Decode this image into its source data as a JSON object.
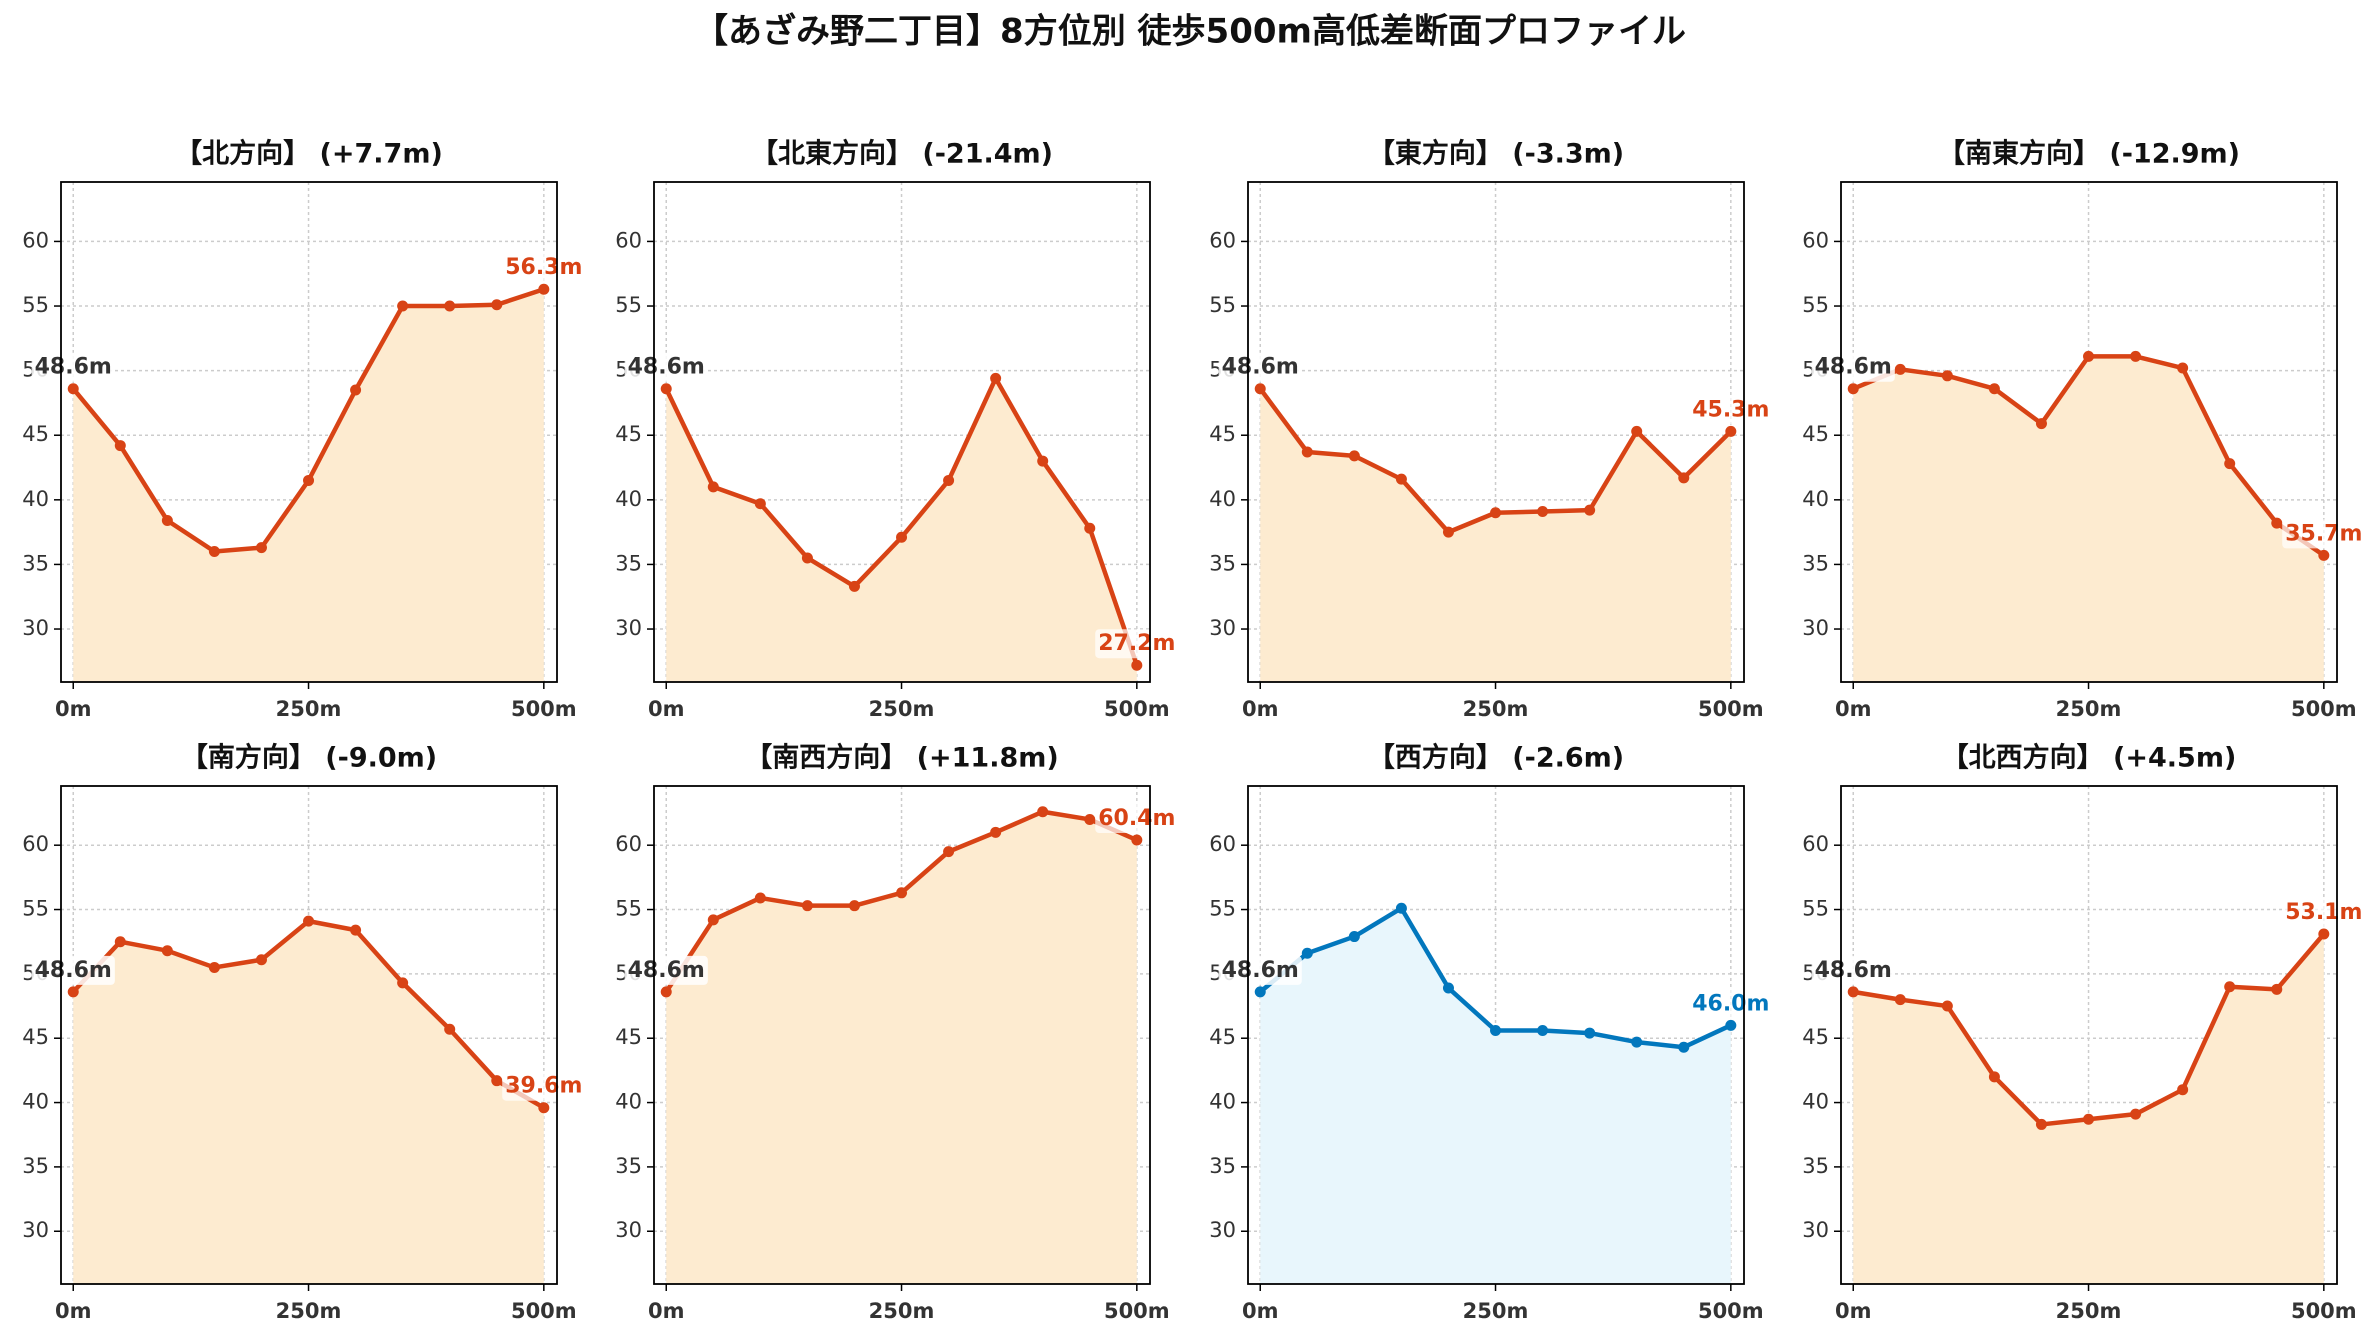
{
  "title": "【あざみ野二丁目】8方位別 徒歩500m高低差断面プロファイル",
  "chart_data": [
    {
      "type": "line",
      "title": "【北方向】 (+7.7m)",
      "x": [
        0,
        50,
        100,
        150,
        200,
        250,
        300,
        350,
        400,
        450,
        500
      ],
      "xlim": [
        -13,
        514
      ],
      "xticks": [
        {
          "value": 0,
          "label": "0m"
        },
        {
          "value": 250,
          "label": "250m"
        },
        {
          "value": 500,
          "label": "500m"
        }
      ],
      "ylim": [
        25.9,
        64.6
      ],
      "yticks": [
        30,
        35,
        40,
        45,
        50,
        55,
        60
      ],
      "grid": true,
      "series": [
        {
          "color": "#d84315",
          "fill": "#fdebd0",
          "values": [
            48.6,
            44.2,
            38.4,
            36.0,
            36.3,
            41.5,
            48.5,
            55.0,
            55.0,
            55.1,
            56.3
          ],
          "value_labels": [
            "48.6m",
            null,
            null,
            null,
            null,
            null,
            null,
            null,
            null,
            null,
            "56.3m"
          ]
        }
      ]
    },
    {
      "type": "line",
      "title": "【北東方向】 (-21.4m)",
      "x": [
        0,
        50,
        100,
        150,
        200,
        250,
        300,
        350,
        400,
        450,
        500
      ],
      "xlim": [
        -13,
        514
      ],
      "xticks": [
        {
          "value": 0,
          "label": "0m"
        },
        {
          "value": 250,
          "label": "250m"
        },
        {
          "value": 500,
          "label": "500m"
        }
      ],
      "ylim": [
        25.9,
        64.6
      ],
      "yticks": [
        30,
        35,
        40,
        45,
        50,
        55,
        60
      ],
      "grid": true,
      "series": [
        {
          "color": "#d84315",
          "fill": "#fdebd0",
          "values": [
            48.6,
            41.0,
            39.7,
            35.5,
            33.3,
            37.1,
            41.5,
            49.4,
            43.0,
            37.8,
            27.2
          ],
          "value_labels": [
            "48.6m",
            null,
            null,
            null,
            null,
            null,
            null,
            null,
            null,
            null,
            "27.2m"
          ]
        }
      ]
    },
    {
      "type": "line",
      "title": "【東方向】 (-3.3m)",
      "x": [
        0,
        50,
        100,
        150,
        200,
        250,
        300,
        350,
        400,
        450,
        500
      ],
      "xlim": [
        -13,
        514
      ],
      "xticks": [
        {
          "value": 0,
          "label": "0m"
        },
        {
          "value": 250,
          "label": "250m"
        },
        {
          "value": 500,
          "label": "500m"
        }
      ],
      "ylim": [
        25.9,
        64.6
      ],
      "yticks": [
        30,
        35,
        40,
        45,
        50,
        55,
        60
      ],
      "grid": true,
      "series": [
        {
          "color": "#d84315",
          "fill": "#fdebd0",
          "values": [
            48.6,
            43.7,
            43.4,
            41.6,
            37.5,
            39.0,
            39.1,
            39.2,
            45.3,
            41.7,
            45.3
          ],
          "value_labels": [
            "48.6m",
            null,
            null,
            null,
            null,
            null,
            null,
            null,
            null,
            null,
            "45.3m"
          ]
        }
      ]
    },
    {
      "type": "line",
      "title": "【南東方向】 (-12.9m)",
      "x": [
        0,
        50,
        100,
        150,
        200,
        250,
        300,
        350,
        400,
        450,
        500
      ],
      "xlim": [
        -13,
        514
      ],
      "xticks": [
        {
          "value": 0,
          "label": "0m"
        },
        {
          "value": 250,
          "label": "250m"
        },
        {
          "value": 500,
          "label": "500m"
        }
      ],
      "ylim": [
        25.9,
        64.6
      ],
      "yticks": [
        30,
        35,
        40,
        45,
        50,
        55,
        60
      ],
      "grid": true,
      "series": [
        {
          "color": "#d84315",
          "fill": "#fdebd0",
          "values": [
            48.6,
            50.1,
            49.6,
            48.6,
            45.9,
            51.1,
            51.1,
            50.2,
            42.8,
            38.2,
            35.7
          ],
          "value_labels": [
            "48.6m",
            null,
            null,
            null,
            null,
            null,
            null,
            null,
            null,
            null,
            "35.7m"
          ]
        }
      ]
    },
    {
      "type": "line",
      "title": "【南方向】 (-9.0m)",
      "x": [
        0,
        50,
        100,
        150,
        200,
        250,
        300,
        350,
        400,
        450,
        500
      ],
      "xlim": [
        -13,
        514
      ],
      "xticks": [
        {
          "value": 0,
          "label": "0m"
        },
        {
          "value": 250,
          "label": "250m"
        },
        {
          "value": 500,
          "label": "500m"
        }
      ],
      "ylim": [
        25.9,
        64.6
      ],
      "yticks": [
        30,
        35,
        40,
        45,
        50,
        55,
        60
      ],
      "grid": true,
      "series": [
        {
          "color": "#d84315",
          "fill": "#fdebd0",
          "values": [
            48.6,
            52.5,
            51.8,
            50.5,
            51.1,
            54.1,
            53.4,
            49.3,
            45.7,
            41.7,
            39.6
          ],
          "value_labels": [
            "48.6m",
            null,
            null,
            null,
            null,
            null,
            null,
            null,
            null,
            null,
            "39.6m"
          ]
        }
      ]
    },
    {
      "type": "line",
      "title": "【南西方向】 (+11.8m)",
      "x": [
        0,
        50,
        100,
        150,
        200,
        250,
        300,
        350,
        400,
        450,
        500
      ],
      "xlim": [
        -13,
        514
      ],
      "xticks": [
        {
          "value": 0,
          "label": "0m"
        },
        {
          "value": 250,
          "label": "250m"
        },
        {
          "value": 500,
          "label": "500m"
        }
      ],
      "ylim": [
        25.9,
        64.6
      ],
      "yticks": [
        30,
        35,
        40,
        45,
        50,
        55,
        60
      ],
      "grid": true,
      "series": [
        {
          "color": "#d84315",
          "fill": "#fdebd0",
          "values": [
            48.6,
            54.2,
            55.9,
            55.3,
            55.3,
            56.3,
            59.5,
            61.0,
            62.6,
            62.0,
            60.4
          ],
          "value_labels": [
            "48.6m",
            null,
            null,
            null,
            null,
            null,
            null,
            null,
            null,
            null,
            "60.4m"
          ]
        }
      ]
    },
    {
      "type": "line",
      "title": "【西方向】 (-2.6m)",
      "x": [
        0,
        50,
        100,
        150,
        200,
        250,
        300,
        350,
        400,
        450,
        500
      ],
      "xlim": [
        -13,
        514
      ],
      "xticks": [
        {
          "value": 0,
          "label": "0m"
        },
        {
          "value": 250,
          "label": "250m"
        },
        {
          "value": 500,
          "label": "500m"
        }
      ],
      "ylim": [
        25.9,
        64.6
      ],
      "yticks": [
        30,
        35,
        40,
        45,
        50,
        55,
        60
      ],
      "grid": true,
      "series": [
        {
          "color": "#0277bd",
          "fill": "#e8f6fc",
          "values": [
            48.6,
            51.6,
            52.9,
            55.1,
            48.9,
            45.6,
            45.6,
            45.4,
            44.7,
            44.3,
            46.0
          ],
          "value_labels": [
            "48.6m",
            null,
            null,
            null,
            null,
            null,
            null,
            null,
            null,
            null,
            "46.0m"
          ]
        }
      ]
    },
    {
      "type": "line",
      "title": "【北西方向】 (+4.5m)",
      "x": [
        0,
        50,
        100,
        150,
        200,
        250,
        300,
        350,
        400,
        450,
        500
      ],
      "xlim": [
        -13,
        514
      ],
      "xticks": [
        {
          "value": 0,
          "label": "0m"
        },
        {
          "value": 250,
          "label": "250m"
        },
        {
          "value": 500,
          "label": "500m"
        }
      ],
      "ylim": [
        25.9,
        64.6
      ],
      "yticks": [
        30,
        35,
        40,
        45,
        50,
        55,
        60
      ],
      "grid": true,
      "series": [
        {
          "color": "#d84315",
          "fill": "#fdebd0",
          "values": [
            48.6,
            48.0,
            47.5,
            42.0,
            38.3,
            38.7,
            39.1,
            41.0,
            49.0,
            48.8,
            53.1
          ],
          "value_labels": [
            "48.6m",
            null,
            null,
            null,
            null,
            null,
            null,
            null,
            null,
            null,
            "53.1m"
          ]
        }
      ]
    }
  ]
}
